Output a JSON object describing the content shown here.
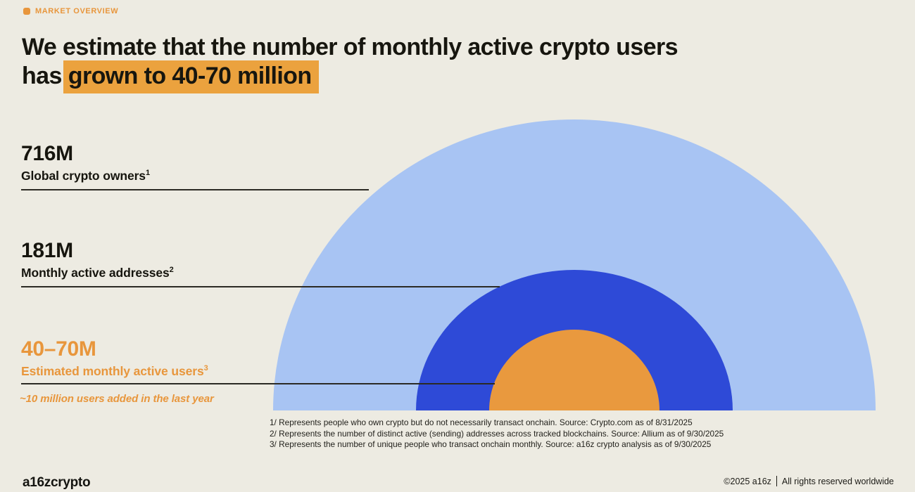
{
  "eyebrow": {
    "label": "MARKET OVERVIEW"
  },
  "title": {
    "line1": "We estimate that the number of monthly active crypto users",
    "line2_prefix": "has",
    "line2_highlight": "grown to 40-70 million"
  },
  "stats": [
    {
      "value": "716M",
      "label": "Global crypto owners",
      "footnote_ref": "1"
    },
    {
      "value": "181M",
      "label": "Monthly active addresses",
      "footnote_ref": "2"
    },
    {
      "value": "40–70M",
      "label": "Estimated monthly active users",
      "footnote_ref": "3"
    }
  ],
  "annotation": "~10 million users added in the last year",
  "chart_data": {
    "type": "area",
    "subtype": "concentric-semicircles-nested-by-area",
    "title": "We estimate that the number of monthly active crypto users has grown to 40-70 million",
    "series": [
      {
        "name": "Global crypto owners",
        "value_label": "716M",
        "value_millions": 716,
        "color": "#a8c4f3"
      },
      {
        "name": "Monthly active addresses",
        "value_label": "181M",
        "value_millions": 181,
        "color": "#2e4ad7"
      },
      {
        "name": "Estimated monthly active users",
        "value_label": "40–70M",
        "value_millions_range": [
          40,
          70
        ],
        "color": "#e9993e"
      }
    ],
    "annotations": [
      "~10 million users added in the last year"
    ],
    "layout_hints": {
      "legend": "left-side callout labels with horizontal rules touching each ring edge",
      "baseline": "all semicircles share a common flat bottom baseline",
      "grid": false
    }
  },
  "footnotes": [
    "1/ Represents people who own crypto but do not necessarily transact onchain. Source: Crypto.com as of 8/31/2025",
    "2/ Represents the number of distinct active (sending) addresses across tracked blockchains. Source: Allium as of 9/30/2025",
    "3/ Represents the number of unique people who transact onchain monthly. Source: a16z crypto analysis as of 9/30/2025"
  ],
  "footer": {
    "logo": "a16zcrypto",
    "copyright": "©2025 a16z",
    "rights": "All rights reserved worldwide"
  },
  "colors": {
    "background": "#edebe2",
    "accent_orange": "#e8963c",
    "title_highlight": "#eba23e",
    "ring_light_blue": "#a8c4f3",
    "ring_dark_blue": "#2e4ad7",
    "ring_orange": "#e9993e",
    "text_dark": "#17160f"
  }
}
